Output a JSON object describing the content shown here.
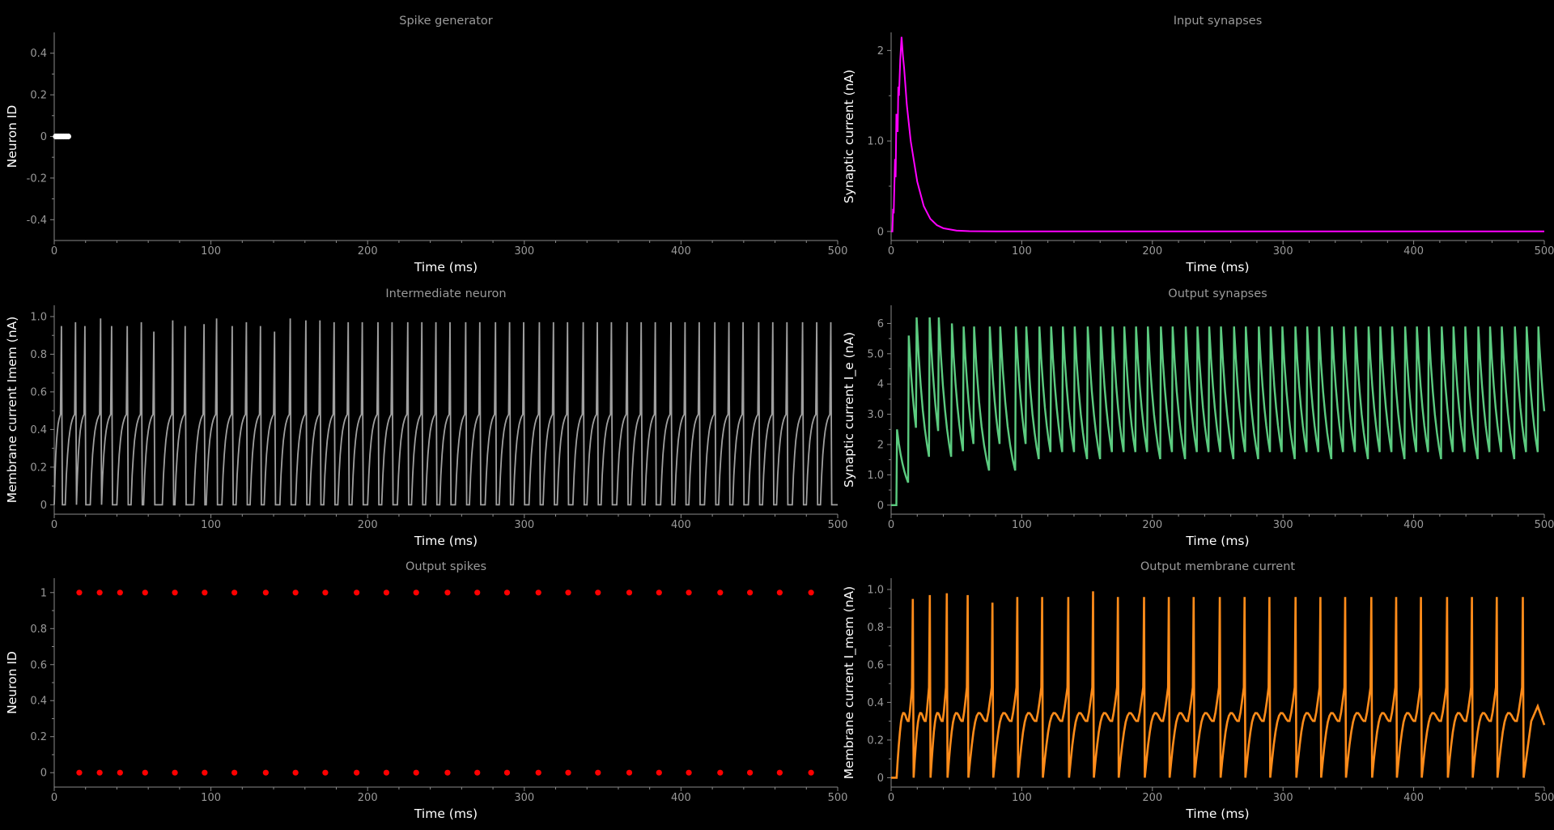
{
  "chart_data": [
    {
      "id": "spike-generator",
      "type": "scatter",
      "title": "Spike generator",
      "xlabel": "Time (ms)",
      "ylabel": "Neuron ID",
      "xlim": [
        0,
        500
      ],
      "ylim": [
        -0.5,
        0.5
      ],
      "xticks": [
        0,
        100,
        200,
        300,
        400,
        500
      ],
      "yticks": [
        -0.4,
        -0.2,
        0,
        0.2,
        0.4
      ],
      "ytick_labels": [
        "-0.4",
        "-0.2",
        "0",
        "0.2",
        "0.4"
      ],
      "color": "#ffffff",
      "points": [
        [
          1,
          0
        ],
        [
          2,
          0
        ],
        [
          3,
          0
        ],
        [
          4,
          0
        ],
        [
          5,
          0
        ],
        [
          6,
          0
        ],
        [
          7,
          0
        ],
        [
          8,
          0
        ],
        [
          9,
          0
        ]
      ]
    },
    {
      "id": "input-synapses",
      "type": "line",
      "title": "Input synapses",
      "xlabel": "Time (ms)",
      "ylabel": "Synaptic current (nA)",
      "xlim": [
        0,
        500
      ],
      "ylim": [
        -0.1,
        2.2
      ],
      "xticks": [
        0,
        100,
        200,
        300,
        400,
        500
      ],
      "yticks": [
        0,
        1,
        2
      ],
      "ytick_labels": [
        "0",
        "1.0",
        "2"
      ],
      "color": "#ff00ff",
      "series": [
        {
          "x": [
            0,
            1,
            1.5,
            2,
            3,
            3.5,
            4,
            5,
            5.5,
            6,
            7,
            8,
            9,
            10,
            12,
            15,
            20,
            25,
            30,
            35,
            40,
            50,
            60,
            80,
            100,
            200,
            300,
            400,
            500
          ],
          "y": [
            0,
            0,
            0.25,
            0.2,
            0.8,
            0.6,
            1.3,
            1.1,
            1.6,
            1.5,
            1.9,
            2.15,
            1.95,
            1.8,
            1.4,
            1.0,
            0.55,
            0.28,
            0.14,
            0.07,
            0.035,
            0.01,
            0.003,
            0,
            0,
            0,
            0,
            0,
            0
          ]
        }
      ]
    },
    {
      "id": "intermediate-neuron",
      "type": "line",
      "title": "Intermediate neuron",
      "xlabel": "Time (ms)",
      "ylabel": "Membrane current Imem (nA)",
      "xlim": [
        0,
        500
      ],
      "ylim": [
        -0.05,
        1.06
      ],
      "xticks": [
        0,
        100,
        200,
        300,
        400,
        500
      ],
      "yticks": [
        0,
        0.2,
        0.4,
        0.6,
        0.8,
        1.0
      ],
      "ytick_labels": [
        "0",
        "0.2",
        "0.4",
        "0.6",
        "0.8",
        "1.0"
      ],
      "color": "#a0a0a0",
      "spike_times": [
        4,
        13,
        19,
        29,
        36,
        46,
        55,
        63,
        75,
        83,
        95,
        103,
        113,
        122,
        131,
        140,
        150,
        160,
        169,
        178,
        187,
        196,
        206,
        215,
        225,
        234,
        243,
        252,
        262,
        271,
        281,
        290,
        299,
        309,
        318,
        327,
        337,
        346,
        355,
        365,
        374,
        383,
        393,
        402,
        411,
        421,
        430,
        439,
        449,
        458,
        467,
        477,
        486,
        495
      ],
      "peaks": [
        0.95,
        0.97,
        0.95,
        0.99,
        0.95,
        0.95,
        0.97,
        0.92,
        0.98,
        0.95,
        0.96,
        0.99,
        0.95,
        0.97,
        0.95,
        0.92,
        0.99,
        0.98,
        0.98,
        0.97,
        0.97,
        0.97,
        0.97,
        0.97,
        0.97,
        0.97,
        0.97,
        0.97,
        0.97,
        0.97,
        0.97,
        0.97,
        0.97,
        0.97,
        0.97,
        0.97,
        0.97,
        0.97,
        0.97,
        0.97,
        0.97,
        0.97,
        0.97,
        0.97,
        0.97,
        0.97,
        0.97,
        0.97,
        0.97,
        0.97,
        0.97,
        0.97,
        0.97,
        0.97
      ]
    },
    {
      "id": "output-synapses",
      "type": "line",
      "title": "Output synapses",
      "xlabel": "Time (ms)",
      "ylabel": "Synaptic current I_e (nA)",
      "xlim": [
        0,
        500
      ],
      "ylim": [
        -0.3,
        6.6
      ],
      "xticks": [
        0,
        100,
        200,
        300,
        400,
        500
      ],
      "yticks": [
        0,
        1,
        2,
        3,
        4,
        5,
        6
      ],
      "ytick_labels": [
        "0",
        "1.0",
        "2",
        "3.0",
        "4",
        "5.0",
        "6"
      ],
      "color": "#5ccb80",
      "series_note": "",
      "peaks_start": [
        2.5,
        5.6,
        6.2,
        6.2,
        6.2,
        6.0
      ]
    },
    {
      "id": "output-spikes",
      "type": "scatter",
      "title": "Output spikes",
      "xlabel": "Time (ms)",
      "ylabel": "Neuron ID",
      "xlim": [
        0,
        500
      ],
      "ylim": [
        -0.08,
        1.08
      ],
      "xticks": [
        0,
        100,
        200,
        300,
        400,
        500
      ],
      "yticks": [
        0,
        0.2,
        0.4,
        0.6,
        0.8,
        1
      ],
      "ytick_labels": [
        "0",
        "0.2",
        "0.4",
        "0.6",
        "0.8",
        "1"
      ],
      "color": "#ff0000",
      "spike_times": [
        16,
        29,
        42,
        58,
        77,
        96,
        115,
        135,
        154,
        173,
        193,
        212,
        231,
        251,
        270,
        289,
        309,
        328,
        347,
        367,
        386,
        405,
        425,
        444,
        463,
        483
      ],
      "neuron_ids": [
        0,
        1
      ]
    },
    {
      "id": "output-membrane",
      "type": "line",
      "title": "Output membrane current",
      "xlabel": "Time (ms)",
      "ylabel": "Membrane current I_mem (nA)",
      "xlim": [
        0,
        500
      ],
      "ylim": [
        -0.05,
        1.06
      ],
      "xticks": [
        0,
        100,
        200,
        300,
        400,
        500
      ],
      "yticks": [
        0,
        0.2,
        0.4,
        0.6,
        0.8,
        1.0
      ],
      "ytick_labels": [
        "0",
        "0.2",
        "0.4",
        "0.6",
        "0.8",
        "1.0"
      ],
      "color": "#ff8c1a",
      "spike_times": [
        16,
        29,
        42,
        58,
        77,
        96,
        115,
        135,
        154,
        173,
        193,
        212,
        231,
        251,
        270,
        289,
        309,
        328,
        347,
        367,
        386,
        405,
        425,
        444,
        463,
        483
      ],
      "peaks": [
        0.95,
        0.97,
        0.98,
        0.97,
        0.93,
        0.96,
        0.96,
        0.96,
        0.99,
        0.96,
        0.96,
        0.96,
        0.96,
        0.96,
        0.96,
        0.96,
        0.96,
        0.96,
        0.96,
        0.96,
        0.96,
        0.96,
        0.96,
        0.96,
        0.96,
        0.96
      ]
    }
  ]
}
